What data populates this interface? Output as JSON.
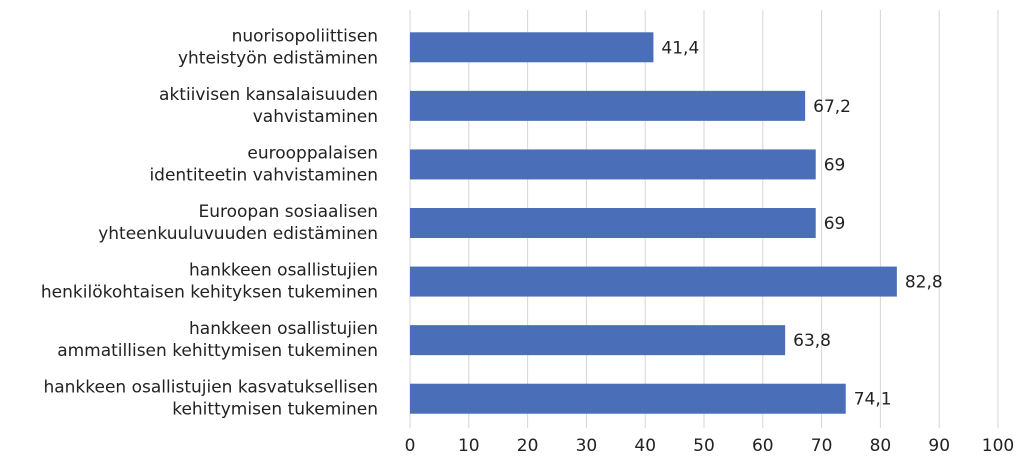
{
  "chart_data": {
    "type": "barh",
    "categories": [
      "nuorisopoliittisen\nyhteistyön edistäminen",
      "aktiivisen kansalaisuuden\nvahvistaminen",
      "eurooppalaisen\nidentiteetin vahvistaminen",
      "Euroopan sosiaalisen\nyhteenkuuluvuuden edistäminen",
      "hankkeen osallistujien\nhenkilökohtaisen kehityksen tukeminen",
      "hankkeen osallistujien\nammatillisen kehittymisen tukeminen",
      "hankkeen osallistujien kasvatuksellisen\nkehittymisen tukeminen"
    ],
    "values": [
      41.4,
      67.2,
      69,
      69,
      82.8,
      63.8,
      74.1
    ],
    "value_labels": [
      "41,4",
      "67,2",
      "69",
      "69",
      "82,8",
      "63,8",
      "74,1"
    ],
    "color": "#4a6fb8",
    "xlim": [
      0,
      100
    ],
    "xticks": [
      0,
      10,
      20,
      30,
      40,
      50,
      60,
      70,
      80,
      90,
      100
    ],
    "grid": true
  }
}
